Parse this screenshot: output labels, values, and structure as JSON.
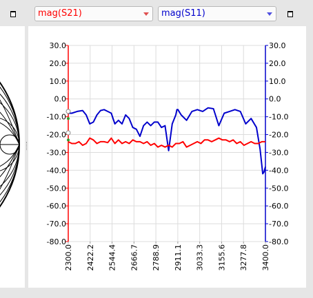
{
  "trace_selectors": [
    {
      "value": "mag(S21)",
      "color": "#ff0000"
    },
    {
      "value": "mag(S11)",
      "color": "#0000cc"
    }
  ],
  "icons": {
    "maximize": "maximize-icon",
    "dropdown": "chevron-down-icon"
  },
  "chart_data": {
    "type": "line",
    "title": "",
    "xlabel": "",
    "ylabel": "",
    "xlim": [
      2300.0,
      3400.0
    ],
    "ylim": [
      -80.0,
      30.0
    ],
    "grid": true,
    "x_tick_labels": [
      "2300.0",
      "2422.2",
      "2544.4",
      "2666.7",
      "2788.9",
      "2911.1",
      "3033.3",
      "3155.6",
      "3277.8",
      "3400.0"
    ],
    "y_tick_labels_left": [
      "30.0",
      "20.0",
      "10.0",
      "0.0",
      "-10.0",
      "-20.0",
      "-30.0",
      "-40.0",
      "-50.0",
      "-60.0",
      "-70.0",
      "-80.0"
    ],
    "y_tick_labels_right": [
      "30.0",
      "20.0",
      "10.0",
      "0.0",
      "-10.0",
      "-20.0",
      "-30.0",
      "-40.0",
      "-50.0",
      "-60.0",
      "-70.0",
      "-80.0"
    ],
    "axis_colors": {
      "left": "#ff0000",
      "right": "#0000cc"
    },
    "series": [
      {
        "color": "#0000cc",
        "x": [
          2300,
          2320,
          2350,
          2380,
          2400,
          2420,
          2440,
          2460,
          2480,
          2500,
          2520,
          2540,
          2560,
          2580,
          2600,
          2620,
          2640,
          2660,
          2680,
          2700,
          2720,
          2740,
          2760,
          2780,
          2800,
          2820,
          2840,
          2860,
          2880,
          2900,
          2906,
          2912,
          2930,
          2960,
          2990,
          3020,
          3050,
          3080,
          3110,
          3140,
          3170,
          3200,
          3230,
          3260,
          3290,
          3320,
          3350,
          3370,
          3385,
          3392,
          3400
        ],
        "values": [
          -8,
          -8,
          -7,
          -6.5,
          -9,
          -14,
          -13,
          -9,
          -6.5,
          -6,
          -7,
          -8,
          -14,
          -12,
          -14,
          -9,
          -11,
          -16,
          -17,
          -21,
          -15,
          -13,
          -15,
          -13,
          -13,
          -16,
          -15,
          -29,
          -14,
          -9,
          -6,
          -6,
          -9,
          -12,
          -7,
          -6,
          -7,
          -5,
          -5.5,
          -15,
          -8,
          -7,
          -6,
          -7,
          -14,
          -11,
          -16,
          -28,
          -42,
          -41,
          -38
        ]
      },
      {
        "color": "#ff0000",
        "x": [
          2300,
          2320,
          2340,
          2360,
          2380,
          2400,
          2420,
          2440,
          2460,
          2480,
          2500,
          2520,
          2540,
          2560,
          2580,
          2600,
          2620,
          2640,
          2660,
          2680,
          2700,
          2720,
          2740,
          2760,
          2780,
          2800,
          2820,
          2840,
          2860,
          2880,
          2900,
          2920,
          2940,
          2960,
          2980,
          3000,
          3020,
          3040,
          3060,
          3080,
          3100,
          3120,
          3140,
          3160,
          3180,
          3200,
          3220,
          3240,
          3260,
          3280,
          3300,
          3320,
          3340,
          3360,
          3380,
          3400
        ],
        "values": [
          -24,
          -25,
          -25,
          -24,
          -26,
          -25,
          -22,
          -23,
          -25,
          -24,
          -24,
          -24.5,
          -22,
          -25,
          -23,
          -25,
          -24,
          -25,
          -23,
          -24,
          -24,
          -25,
          -24,
          -26,
          -25,
          -27,
          -26,
          -27,
          -26,
          -27,
          -25,
          -25,
          -24,
          -27,
          -26,
          -25,
          -24,
          -25,
          -23,
          -23,
          -24,
          -23,
          -22,
          -23,
          -23,
          -24,
          -23,
          -25,
          -24,
          -26,
          -25,
          -24,
          -25,
          -25,
          -24,
          -24
        ]
      }
    ]
  }
}
